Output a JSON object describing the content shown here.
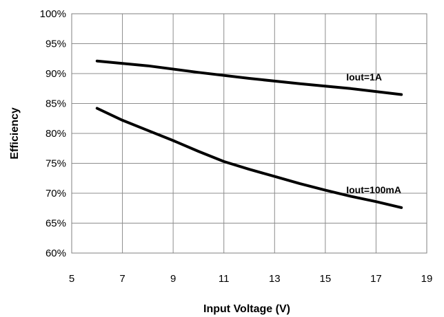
{
  "chart_data": {
    "type": "line",
    "xlabel": "Input Voltage (V)",
    "ylabel": "Efficiency",
    "xlim": [
      5,
      19
    ],
    "ylim": [
      60,
      100
    ],
    "x_ticks": [
      5,
      7,
      9,
      11,
      13,
      15,
      17,
      19
    ],
    "y_ticks": [
      60,
      65,
      70,
      75,
      80,
      85,
      90,
      95,
      100
    ],
    "y_tick_labels": [
      "60%",
      "65%",
      "70%",
      "75%",
      "80%",
      "85%",
      "90%",
      "95%",
      "100%"
    ],
    "grid": true,
    "series": [
      {
        "name": "Iout=1A",
        "x": [
          6,
          8,
          10,
          12,
          14,
          16,
          18
        ],
        "y": [
          92.1,
          91.3,
          90.2,
          89.2,
          88.3,
          87.5,
          86.5
        ]
      },
      {
        "name": "Iout=100mA",
        "x": [
          6,
          7,
          8,
          9,
          10,
          11,
          12,
          13,
          14,
          15,
          16,
          17,
          18
        ],
        "y": [
          84.2,
          82.2,
          80.5,
          78.8,
          77.0,
          75.3,
          74.0,
          72.8,
          71.6,
          70.5,
          69.5,
          68.6,
          67.6
        ]
      }
    ]
  }
}
